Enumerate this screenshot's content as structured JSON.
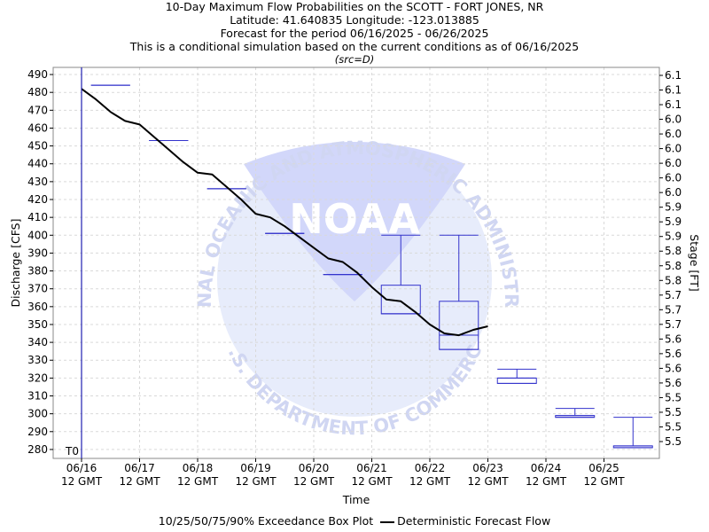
{
  "header": {
    "title": "10-Day Maximum Flow Probabilities on the SCOTT - FORT JONES, NR",
    "location": "Latitude: 41.640835 Longitude: -123.013885",
    "period": "Forecast for the period 06/16/2025 - 06/26/2025",
    "note": "This is a conditional simulation based on the current conditions as of 06/16/2025",
    "source": "(src=D)"
  },
  "legend": {
    "box_label": "10/25/50/75/90% Exceedance Box Plot",
    "line_label": "Deterministic Forecast Flow"
  },
  "colors": {
    "box": "#3333cc",
    "line": "#000000",
    "grid": "#d9d9d9",
    "t0": "#2020b0"
  },
  "watermark": {
    "name": "noaa-logo",
    "text_top": "NATIONAL OCEANIC AND ATMOSPHERIC ADMINISTRATION",
    "text_bottom": "U.S. DEPARTMENT OF COMMERCE",
    "center": "NOAA"
  },
  "chart_data": {
    "type": "box-line",
    "xlabel": "Time",
    "ylabel": "Discharge [CFS]",
    "y2label": "Stage [FT]",
    "ylim": [
      275,
      494
    ],
    "grid": true,
    "t0_label": "T0",
    "x_ticks": [
      {
        "date": "06/16",
        "time": "12 GMT"
      },
      {
        "date": "06/17",
        "time": "12 GMT"
      },
      {
        "date": "06/18",
        "time": "12 GMT"
      },
      {
        "date": "06/19",
        "time": "12 GMT"
      },
      {
        "date": "06/20",
        "time": "12 GMT"
      },
      {
        "date": "06/21",
        "time": "12 GMT"
      },
      {
        "date": "06/22",
        "time": "12 GMT"
      },
      {
        "date": "06/23",
        "time": "12 GMT"
      },
      {
        "date": "06/24",
        "time": "12 GMT"
      },
      {
        "date": "06/25",
        "time": "12 GMT"
      }
    ],
    "y_ticks": [
      280,
      290,
      300,
      310,
      320,
      330,
      340,
      350,
      360,
      370,
      380,
      390,
      400,
      410,
      420,
      430,
      440,
      450,
      460,
      470,
      480,
      490
    ],
    "y2_ticks": [
      "5.5",
      "5.5",
      "5.5",
      "5.5",
      "5.6",
      "5.6",
      "5.6",
      "5.6",
      "5.7",
      "5.7",
      "5.7",
      "5.8",
      "5.8",
      "5.8",
      "5.9",
      "5.9",
      "5.9",
      "6.0",
      "6.0",
      "6.0",
      "6.0",
      "6.0",
      "6.0",
      "6.1",
      "6.1",
      "6.1"
    ],
    "boxes": [
      {
        "day": 0.5,
        "p10": 484,
        "p25": 484,
        "p50": 484,
        "p75": 484,
        "p90": 484
      },
      {
        "day": 1.5,
        "p10": 453,
        "p25": 453,
        "p50": 453,
        "p75": 453,
        "p90": 453
      },
      {
        "day": 2.5,
        "p10": 426,
        "p25": 426,
        "p50": 426,
        "p75": 426,
        "p90": 426
      },
      {
        "day": 3.5,
        "p10": 401,
        "p25": 401,
        "p50": 401,
        "p75": 401,
        "p90": 401
      },
      {
        "day": 4.5,
        "p10": 378,
        "p25": 378,
        "p50": 378,
        "p75": 378,
        "p90": 378
      },
      {
        "day": 5.5,
        "p10": 356,
        "p25": 356,
        "p50": 356,
        "p75": 372,
        "p90": 400
      },
      {
        "day": 6.5,
        "p10": 336,
        "p25": 336,
        "p50": 344,
        "p75": 363,
        "p90": 400
      },
      {
        "day": 7.5,
        "p10": 317,
        "p25": 317,
        "p50": 320,
        "p75": 320,
        "p90": 325
      },
      {
        "day": 8.5,
        "p10": 298,
        "p25": 298,
        "p50": 299,
        "p75": 299,
        "p90": 303
      },
      {
        "day": 9.5,
        "p10": 281,
        "p25": 281,
        "p50": 282,
        "p75": 282,
        "p90": 298
      }
    ],
    "deterministic": {
      "name": "Deterministic Forecast Flow",
      "points": [
        [
          0.0,
          482
        ],
        [
          0.25,
          476
        ],
        [
          0.5,
          469
        ],
        [
          0.75,
          464
        ],
        [
          1.0,
          462
        ],
        [
          1.25,
          455
        ],
        [
          1.5,
          448
        ],
        [
          1.75,
          441
        ],
        [
          2.0,
          435
        ],
        [
          2.25,
          434
        ],
        [
          2.5,
          427
        ],
        [
          2.75,
          420
        ],
        [
          3.0,
          412
        ],
        [
          3.25,
          410
        ],
        [
          3.5,
          405
        ],
        [
          3.75,
          399
        ],
        [
          4.0,
          393
        ],
        [
          4.25,
          387
        ],
        [
          4.5,
          385
        ],
        [
          4.75,
          379
        ],
        [
          5.0,
          371
        ],
        [
          5.25,
          364
        ],
        [
          5.5,
          363
        ],
        [
          5.75,
          357
        ],
        [
          6.0,
          350
        ],
        [
          6.25,
          345
        ],
        [
          6.5,
          344
        ],
        [
          6.75,
          347
        ],
        [
          7.0,
          349
        ]
      ]
    }
  }
}
